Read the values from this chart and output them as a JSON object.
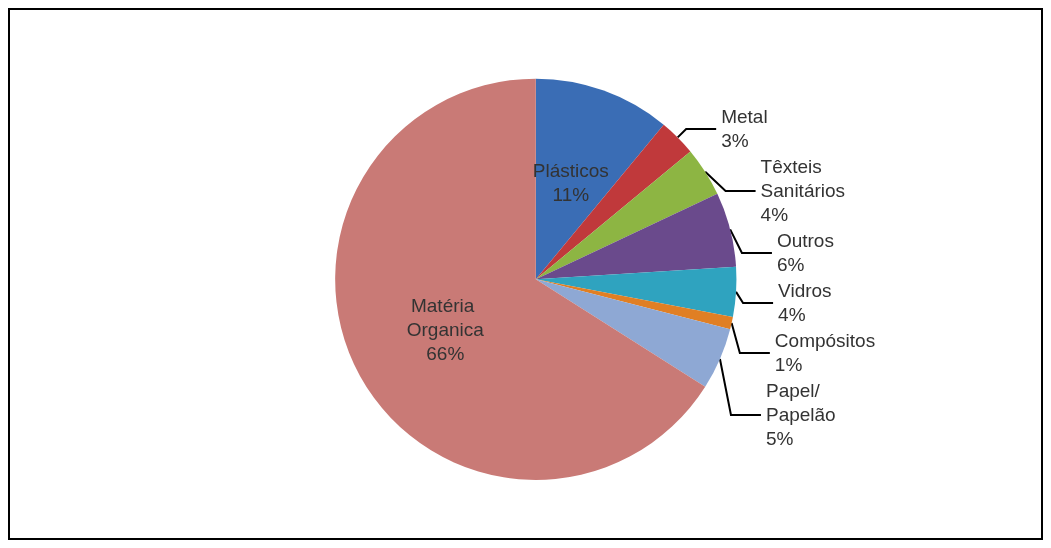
{
  "chart_data": {
    "type": "pie",
    "categories": [
      "Plásticos",
      "Metal",
      "Têxteis Sanitários",
      "Outros",
      "Vidros",
      "Compósitos",
      "Papel/Papelão",
      "Matéria Organica"
    ],
    "values": [
      11,
      3,
      4,
      6,
      4,
      1,
      5,
      66
    ],
    "colors": [
      "#3a6db5",
      "#c0393b",
      "#8db543",
      "#6a4a8c",
      "#2fa3bf",
      "#e07f24",
      "#8ea8d4",
      "#c97a76"
    ],
    "value_labels": [
      "11%",
      "3%",
      "4%",
      "6%",
      "4%",
      "1%",
      "5%",
      "66%"
    ],
    "legend": false
  }
}
